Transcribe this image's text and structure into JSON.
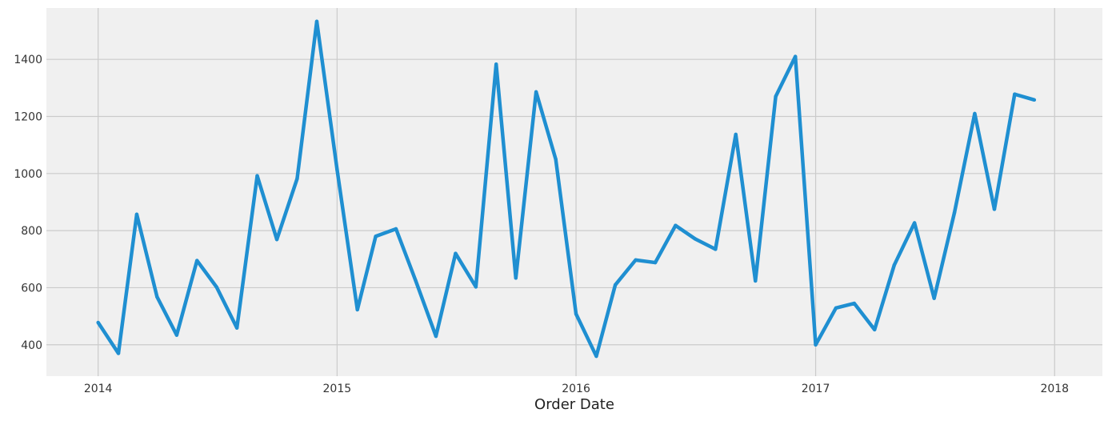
{
  "chart_data": {
    "type": "line",
    "title": "",
    "xlabel": "Order Date",
    "ylabel": "",
    "xlim": [
      "2013-10-14",
      "2018-03-15"
    ],
    "ylim": [
      290,
      1580
    ],
    "grid": true,
    "x_ticks": [
      {
        "date": "2014-01-01",
        "label": "2014"
      },
      {
        "date": "2015-01-01",
        "label": "2015"
      },
      {
        "date": "2016-01-01",
        "label": "2016"
      },
      {
        "date": "2017-01-01",
        "label": "2017"
      },
      {
        "date": "2018-01-01",
        "label": "2018"
      }
    ],
    "y_ticks": [
      400,
      600,
      800,
      1000,
      1200,
      1400
    ],
    "colors": {
      "line": "#1f8fd1",
      "plot_background": "#f0f0f0",
      "grid": "#cbcbcb"
    },
    "series": [
      {
        "x": [
          "2014-01-01",
          "2014-02-01",
          "2014-03-01",
          "2014-04-01",
          "2014-05-01",
          "2014-06-01",
          "2014-07-01",
          "2014-08-01",
          "2014-09-01",
          "2014-10-01",
          "2014-11-01",
          "2014-12-01",
          "2015-01-01",
          "2015-02-01",
          "2015-03-01",
          "2015-04-01",
          "2015-05-01",
          "2015-06-01",
          "2015-07-01",
          "2015-08-01",
          "2015-09-01",
          "2015-10-01",
          "2015-11-01",
          "2015-12-01",
          "2016-01-01",
          "2016-02-01",
          "2016-03-01",
          "2016-04-01",
          "2016-05-01",
          "2016-06-01",
          "2016-07-01",
          "2016-08-01",
          "2016-09-01",
          "2016-10-01",
          "2016-11-01",
          "2016-12-01",
          "2017-01-01",
          "2017-02-01",
          "2017-03-01",
          "2017-04-01",
          "2017-05-01",
          "2017-06-01",
          "2017-07-01",
          "2017-08-01",
          "2017-09-01",
          "2017-10-01",
          "2017-11-01",
          "2017-12-01"
        ],
        "values": [
          478,
          370,
          857,
          568,
          434,
          695,
          602,
          459,
          992,
          769,
          982,
          1533,
          1014,
          523,
          780,
          806,
          625,
          430,
          720,
          603,
          1383,
          634,
          1286,
          1050,
          508,
          360,
          610,
          697,
          688,
          818,
          771,
          735,
          1137,
          624,
          1270,
          1410,
          400,
          529,
          545,
          453,
          679,
          827,
          563,
          863,
          1210,
          875,
          1278,
          1258
        ]
      }
    ]
  }
}
